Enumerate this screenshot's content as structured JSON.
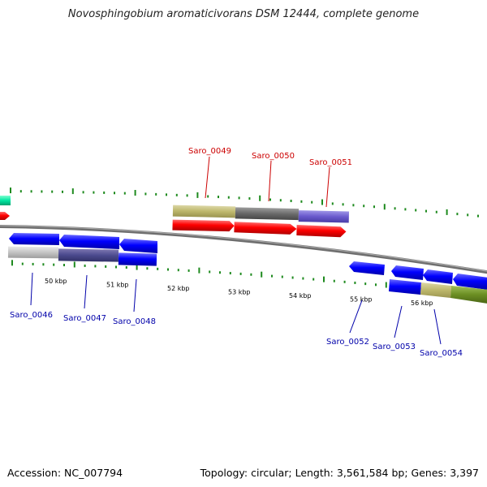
{
  "title": "Novosphingobium aromaticivorans DSM 12444, complete genome",
  "footer": {
    "accession": "Accession: NC_007794",
    "stats": "Topology: circular; Length: 3,561,584 bp; Genes: 3,397"
  },
  "colors": {
    "forward_label": "#cc0000",
    "reverse_label": "#0000aa",
    "backbone": "#888888",
    "tick": "#1e8a1e"
  },
  "scale": {
    "ticks": [
      "50 kbp",
      "51 kbp",
      "52 kbp",
      "53 kbp",
      "54 kbp",
      "55 kbp",
      "56 kbp"
    ]
  },
  "genes": {
    "forward": [
      "Saro_0049",
      "Saro_0050",
      "Saro_0051"
    ],
    "reverse": [
      "Saro_0046",
      "Saro_0047",
      "Saro_0048",
      "Saro_0052",
      "Saro_0053",
      "Saro_0054"
    ]
  }
}
